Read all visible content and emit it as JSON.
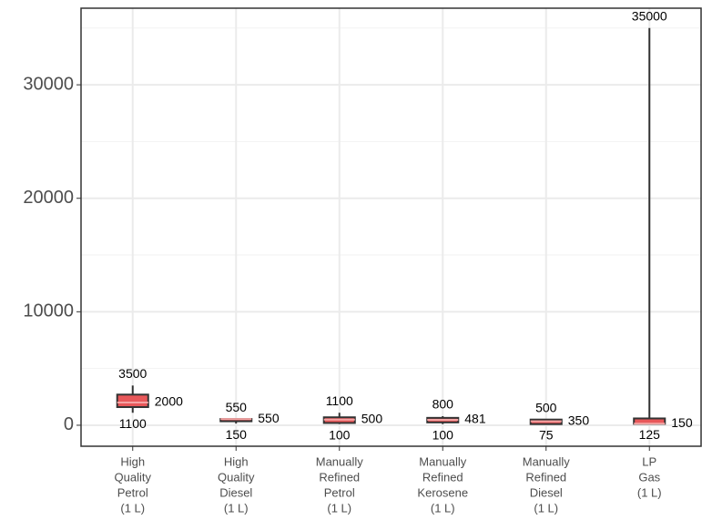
{
  "chart_data": {
    "type": "boxplot",
    "categories": [
      [
        "High",
        "Quality",
        "Petrol",
        "(1 L)"
      ],
      [
        "High",
        "Quality",
        "Diesel",
        "(1 L)"
      ],
      [
        "Manually",
        "Refined",
        "Petrol",
        "(1 L)"
      ],
      [
        "Manually",
        "Refined",
        "Kerosene",
        "(1 L)"
      ],
      [
        "Manually",
        "Refined",
        "Diesel",
        "(1 L)"
      ],
      [
        "LP",
        "Gas",
        "(1 L)"
      ]
    ],
    "boxes": [
      {
        "min": 1100,
        "q1": 1600,
        "median": 2000,
        "q3": 2700,
        "max": 3500
      },
      {
        "min": 150,
        "q1": 350,
        "median": 550,
        "q3": 550,
        "max": 550
      },
      {
        "min": 100,
        "q1": 200,
        "median": 500,
        "q3": 700,
        "max": 1100
      },
      {
        "min": 100,
        "q1": 250,
        "median": 481,
        "q3": 650,
        "max": 800
      },
      {
        "min": 75,
        "q1": 100,
        "median": 350,
        "q3": 500,
        "max": 500
      },
      {
        "min": 125,
        "q1": 125,
        "median": 150,
        "q3": 600,
        "max": 35000
      }
    ],
    "color": "#e8585a",
    "ylim": [
      -1850,
      36750
    ],
    "yticks": [
      0,
      10000,
      20000,
      30000
    ],
    "yminor": [
      5000,
      15000,
      25000,
      35000
    ],
    "grid": true
  }
}
